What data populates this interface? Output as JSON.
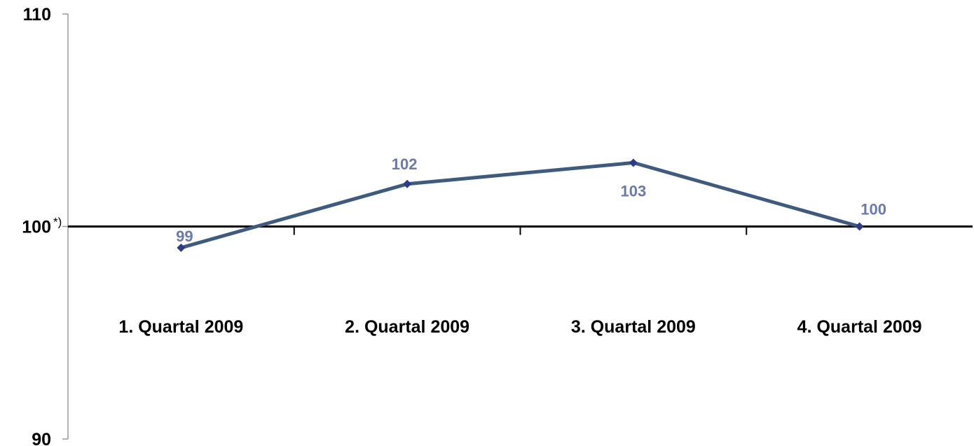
{
  "chart_data": {
    "type": "line",
    "categories": [
      "1. Quartal 2009",
      "2. Quartal 2009",
      "3. Quartal 2009",
      "4. Quartal 2009"
    ],
    "series": [
      {
        "values": [
          99,
          102,
          103,
          100
        ],
        "color": "#3d5a80",
        "marker_color": "#2e3a8c"
      }
    ],
    "data_labels": [
      "99",
      "102",
      "103",
      "100"
    ],
    "data_label_color": "#6a78b4",
    "y_ticks": [
      {
        "value": 110,
        "label": "110"
      },
      {
        "value": 100,
        "label": "100"
      },
      {
        "value": 90,
        "label": "90"
      }
    ],
    "baseline_footnote": "*)",
    "ylim": [
      90,
      110
    ],
    "baseline_value": 100,
    "grid": false,
    "legend": "none"
  }
}
